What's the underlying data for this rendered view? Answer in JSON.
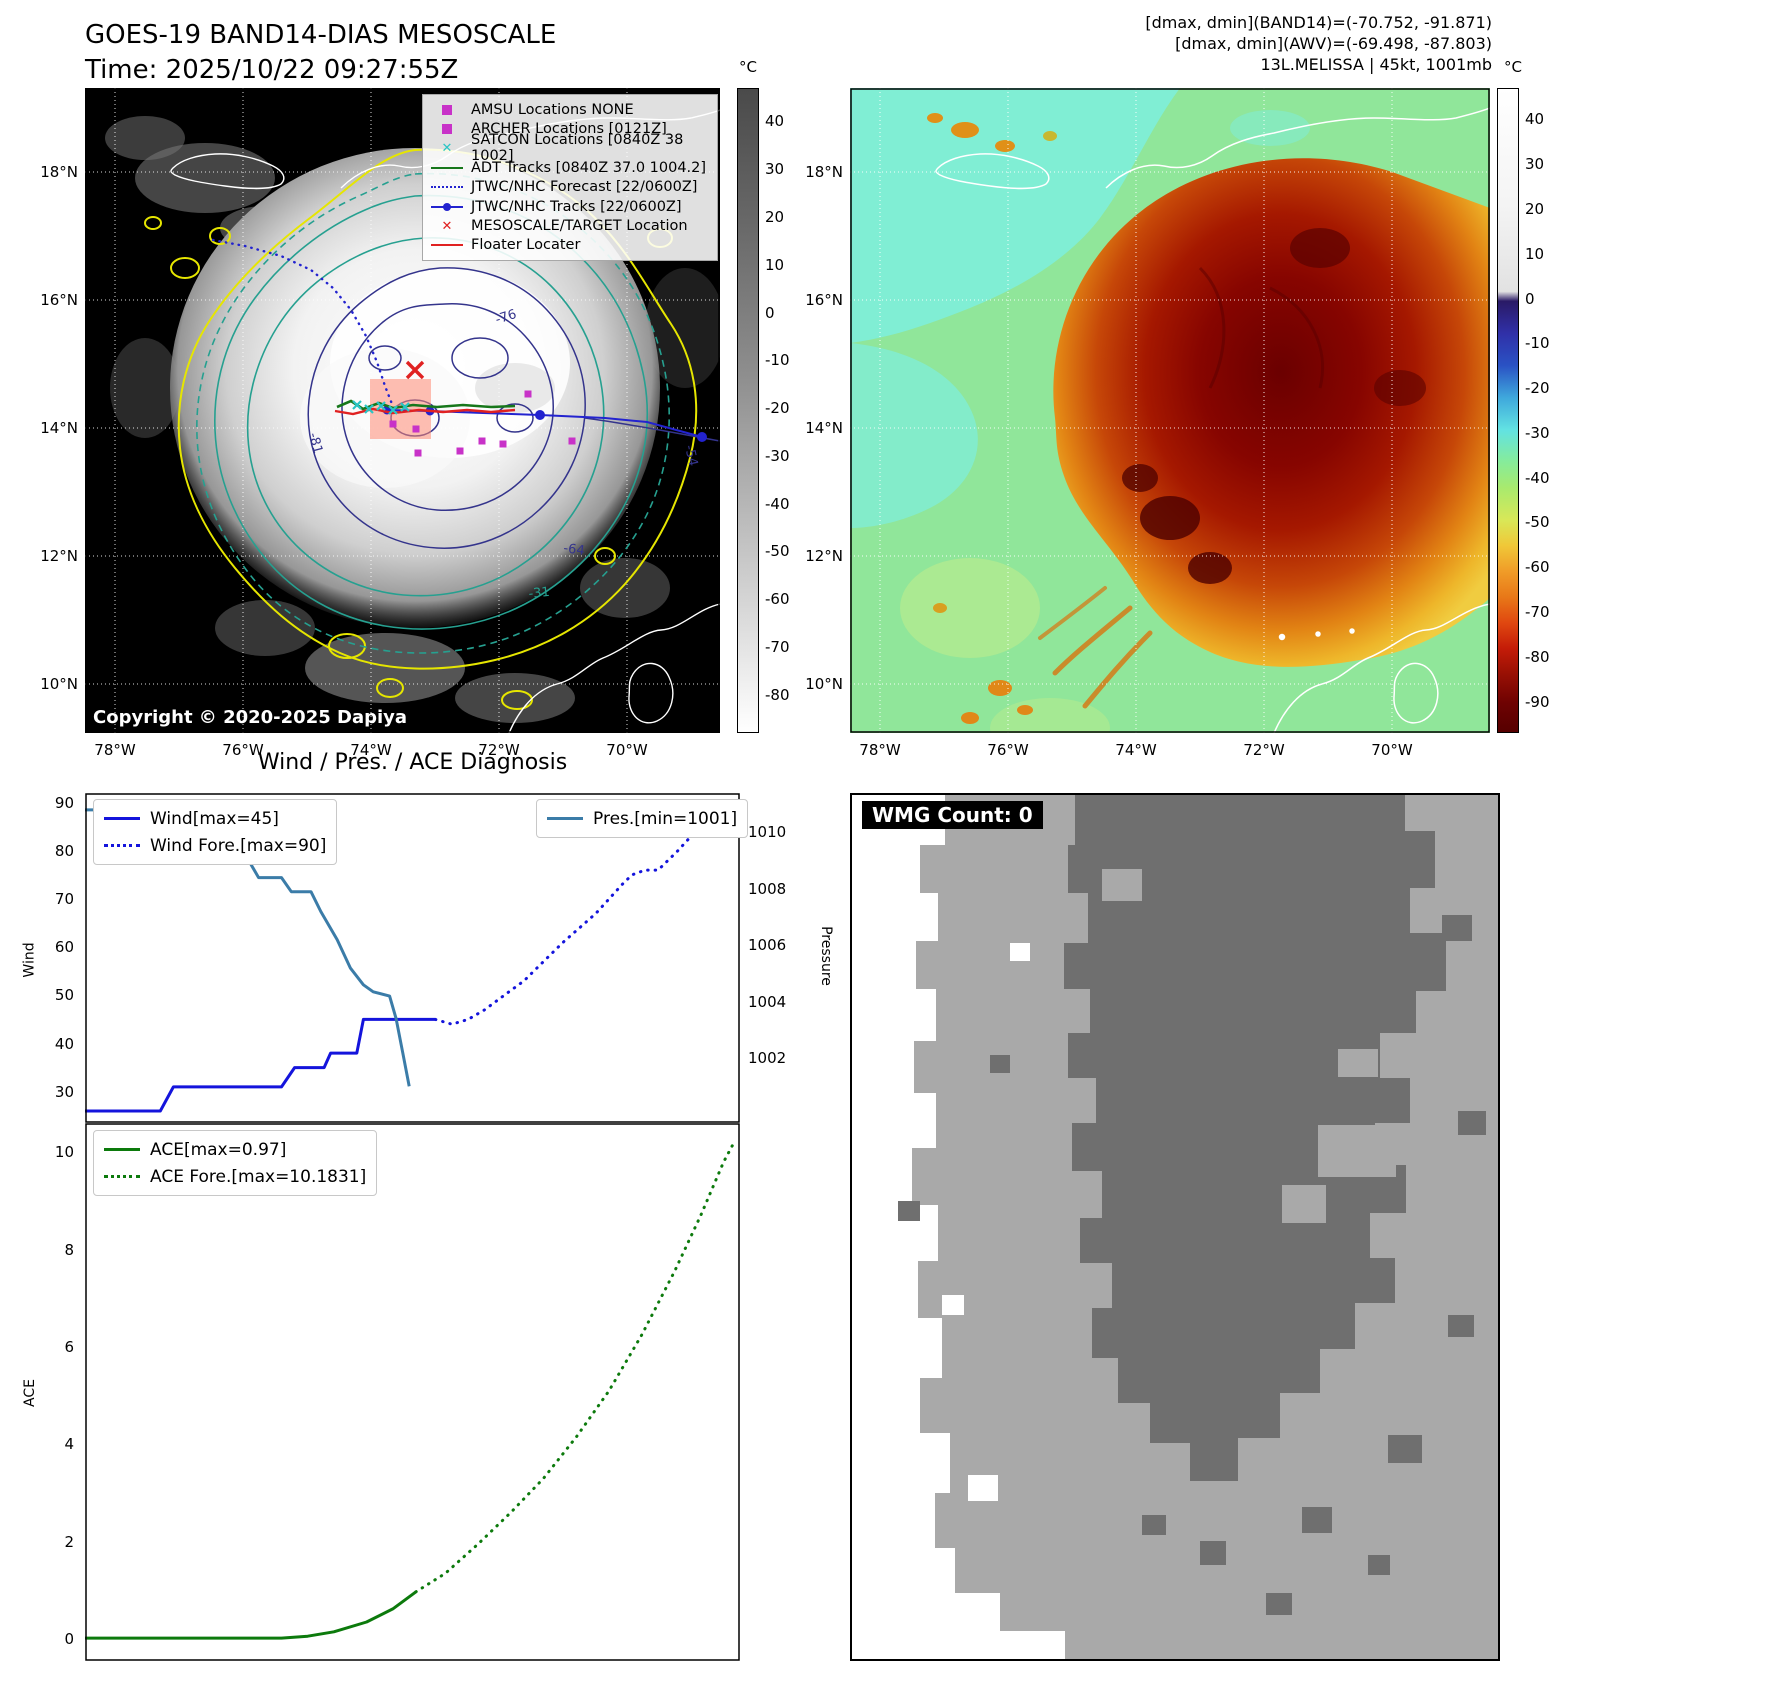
{
  "title_block": {
    "title": "GOES-19 BAND14-DIAS MESOSCALE",
    "time_line": "Time: 2025/10/22 09:27:55Z"
  },
  "header_right": {
    "line1": "[dmax, dmin](BAND14)=(-70.752, -91.871)",
    "line2": "[dmax, dmin](AWV)=(-69.498, -87.803)",
    "line3": "13L.MELISSA | 45kt, 1001mb"
  },
  "map_left": {
    "copyright": "Copyright © 2020-2025 Dapiya",
    "lat_ticks": [
      "18°N",
      "16°N",
      "14°N",
      "12°N",
      "10°N"
    ],
    "lon_ticks": [
      "78°W",
      "76°W",
      "74°W",
      "72°W",
      "70°W"
    ],
    "colorbar": {
      "unit": "°C",
      "max": 47,
      "min": -88,
      "ticks": [
        40,
        30,
        20,
        10,
        0,
        -10,
        -20,
        -30,
        -40,
        -50,
        -60,
        -70,
        -80
      ]
    },
    "contour_labels": {
      "a": "-76",
      "b": "-64",
      "c": "-31",
      "d": "-54",
      "e": "-81"
    },
    "legend": [
      {
        "label": "AMSU Locations NONE",
        "marker": "square",
        "color": "#c832c8"
      },
      {
        "label": "ARCHER Locations [0121Z]",
        "marker": "square",
        "color": "#c832c8"
      },
      {
        "label": "SATCON Locations [0840Z 38 1002]",
        "marker": "x",
        "color": "#29c5c5"
      },
      {
        "label": "ADT Tracks [0840Z 37.0 1004.2]",
        "marker": "line",
        "color": "#17771b"
      },
      {
        "label": "JTWC/NHC Forecast [22/0600Z]",
        "marker": "dotted",
        "color": "#2323cf"
      },
      {
        "label": "JTWC/NHC Tracks [22/0600Z]",
        "marker": "line-dot",
        "color": "#2323cf"
      },
      {
        "label": "MESOSCALE/TARGET Location",
        "marker": "x",
        "color": "#e02121"
      },
      {
        "label": "Floater Locater",
        "marker": "line",
        "color": "#e02121"
      }
    ]
  },
  "map_right": {
    "lat_ticks": [
      "18°N",
      "16°N",
      "14°N",
      "12°N",
      "10°N"
    ],
    "lon_ticks": [
      "78°W",
      "76°W",
      "74°W",
      "72°W",
      "70°W"
    ],
    "colorbar": {
      "unit": "°C",
      "max": 47,
      "min": -97,
      "ticks": [
        40,
        30,
        20,
        10,
        0,
        -10,
        -20,
        -30,
        -40,
        -50,
        -60,
        -70,
        -80,
        -90
      ]
    }
  },
  "chart_data": [
    {
      "type": "line",
      "title": "Wind / Pres. / ACE Diagnosis",
      "ylabel": "Wind",
      "y2label": "Pressure",
      "ylim": [
        23.5,
        92
      ],
      "y2lim": [
        999.7,
        1011.4
      ],
      "yticks": [
        30,
        40,
        50,
        60,
        70,
        80,
        90
      ],
      "y2ticks": [
        1002,
        1004,
        1006,
        1008,
        1010
      ],
      "series": [
        {
          "name": "Wind[max=45]",
          "color": "#1414dc",
          "style": "solid",
          "axis": "y",
          "points": [
            [
              0,
              26
            ],
            [
              0.115,
              26
            ],
            [
              0.135,
              31
            ],
            [
              0.3,
              31
            ],
            [
              0.32,
              35
            ],
            [
              0.365,
              35
            ],
            [
              0.375,
              38
            ],
            [
              0.415,
              38
            ],
            [
              0.425,
              45
            ],
            [
              0.535,
              45
            ]
          ]
        },
        {
          "name": "Wind Fore.[max=90]",
          "color": "#1414dc",
          "style": "dotted",
          "axis": "y",
          "points": [
            [
              0.535,
              45
            ],
            [
              0.56,
              44
            ],
            [
              0.585,
              45
            ],
            [
              0.61,
              47
            ],
            [
              0.64,
              50
            ],
            [
              0.67,
              53
            ],
            [
              0.7,
              57
            ],
            [
              0.73,
              61
            ],
            [
              0.755,
              64
            ],
            [
              0.78,
              67
            ],
            [
              0.8,
              70
            ],
            [
              0.82,
              73
            ],
            [
              0.835,
              75
            ],
            [
              0.855,
              76
            ],
            [
              0.875,
              76
            ],
            [
              0.89,
              78
            ],
            [
              0.905,
              80
            ],
            [
              0.925,
              83
            ],
            [
              0.945,
              84
            ],
            [
              0.955,
              84
            ],
            [
              0.97,
              86
            ],
            [
              0.985,
              88
            ],
            [
              1,
              90
            ]
          ]
        },
        {
          "name": "Pres.[min=1001]",
          "color": "#3b7ca8",
          "style": "solid",
          "axis": "y2",
          "points": [
            [
              0,
              1010.8
            ],
            [
              0.065,
              1010.8
            ],
            [
              0.075,
              1010.2
            ],
            [
              0.105,
              1010.2
            ],
            [
              0.115,
              1009.4
            ],
            [
              0.145,
              1009.4
            ],
            [
              0.155,
              1009
            ],
            [
              0.25,
              1009
            ],
            [
              0.265,
              1008.4
            ],
            [
              0.3,
              1008.4
            ],
            [
              0.315,
              1007.9
            ],
            [
              0.345,
              1007.9
            ],
            [
              0.36,
              1007.2
            ],
            [
              0.385,
              1006.2
            ],
            [
              0.405,
              1005.2
            ],
            [
              0.425,
              1004.6
            ],
            [
              0.44,
              1004.35
            ],
            [
              0.465,
              1004.2
            ],
            [
              0.475,
              1003.4
            ],
            [
              0.485,
              1002.2
            ],
            [
              0.495,
              1001
            ]
          ]
        }
      ]
    },
    {
      "type": "line",
      "ylabel": "ACE",
      "ylim": [
        -0.45,
        10.6
      ],
      "yticks": [
        0,
        2,
        4,
        6,
        8,
        10
      ],
      "series": [
        {
          "name": "ACE[max=0.97]",
          "color": "#0c7a0c",
          "style": "solid",
          "axis": "y",
          "points": [
            [
              0,
              0.02
            ],
            [
              0.3,
              0.02
            ],
            [
              0.34,
              0.06
            ],
            [
              0.38,
              0.15
            ],
            [
              0.43,
              0.35
            ],
            [
              0.47,
              0.62
            ],
            [
              0.505,
              0.97
            ]
          ]
        },
        {
          "name": "ACE Fore.[max=10.1831]",
          "color": "#0c7a0c",
          "style": "dotted",
          "axis": "y",
          "points": [
            [
              0.505,
              0.97
            ],
            [
              0.55,
              1.35
            ],
            [
              0.6,
              1.95
            ],
            [
              0.65,
              2.6
            ],
            [
              0.7,
              3.3
            ],
            [
              0.75,
              4.15
            ],
            [
              0.8,
              5.1
            ],
            [
              0.85,
              6.25
            ],
            [
              0.9,
              7.55
            ],
            [
              0.94,
              8.7
            ],
            [
              0.975,
              9.8
            ],
            [
              0.99,
              10.18
            ]
          ]
        }
      ]
    }
  ],
  "wmg": {
    "label": "WMG Count: 0"
  }
}
